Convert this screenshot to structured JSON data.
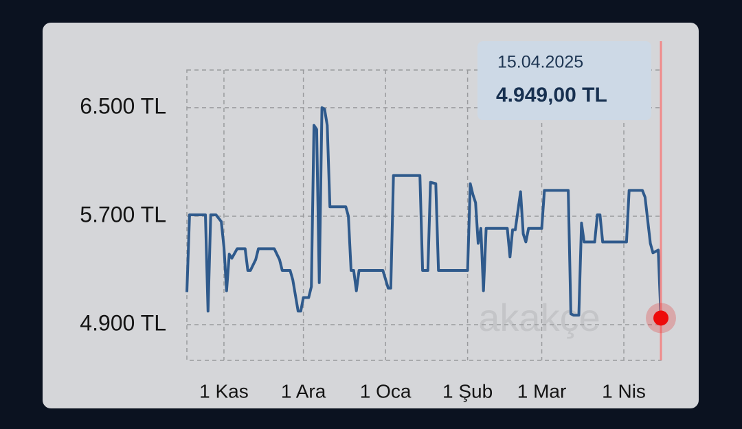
{
  "chart_data": {
    "type": "line",
    "x": [
      "2024-10-18",
      "2024-10-19",
      "2024-10-25",
      "2024-10-26",
      "2024-10-27",
      "2024-10-29",
      "2024-10-31",
      "2024-11-01",
      "2024-11-02",
      "2024-11-03",
      "2024-11-04",
      "2024-11-06",
      "2024-11-09",
      "2024-11-10",
      "2024-11-11",
      "2024-11-13",
      "2024-11-14",
      "2024-11-20",
      "2024-11-22",
      "2024-11-23",
      "2024-11-26",
      "2024-11-27",
      "2024-11-29",
      "2024-11-30",
      "2024-12-01",
      "2024-12-03",
      "2024-12-04",
      "2024-12-05",
      "2024-12-06",
      "2024-12-07",
      "2024-12-08",
      "2024-12-09",
      "2024-12-10",
      "2024-12-11",
      "2024-12-17",
      "2024-12-18",
      "2024-12-19",
      "2024-12-20",
      "2024-12-21",
      "2024-12-22",
      "2024-12-31",
      "2025-01-02",
      "2025-01-03",
      "2025-01-04",
      "2025-01-14",
      "2025-01-15",
      "2025-01-17",
      "2025-01-18",
      "2025-01-20",
      "2025-01-21",
      "2025-02-01",
      "2025-02-02",
      "2025-02-03",
      "2025-02-04",
      "2025-02-05",
      "2025-02-06",
      "2025-02-07",
      "2025-02-08",
      "2025-02-16",
      "2025-02-17",
      "2025-02-18",
      "2025-02-19",
      "2025-02-21",
      "2025-02-22",
      "2025-02-23",
      "2025-02-24",
      "2025-03-01",
      "2025-03-02",
      "2025-03-11",
      "2025-03-12",
      "2025-03-13",
      "2025-03-15",
      "2025-03-16",
      "2025-03-17",
      "2025-03-21",
      "2025-03-22",
      "2025-03-23",
      "2025-03-24",
      "2025-04-02",
      "2025-04-03",
      "2025-04-08",
      "2025-04-09",
      "2025-04-11",
      "2025-04-12",
      "2025-04-14",
      "2025-04-15"
    ],
    "values": [
      5140,
      5710,
      5710,
      5000,
      5710,
      5710,
      5660,
      5470,
      5150,
      5420,
      5390,
      5460,
      5460,
      5300,
      5300,
      5380,
      5460,
      5460,
      5380,
      5300,
      5300,
      5230,
      5000,
      5000,
      5100,
      5100,
      5180,
      6370,
      6340,
      5210,
      6500,
      6490,
      6370,
      5770,
      5770,
      5700,
      5300,
      5300,
      5150,
      5300,
      5300,
      5170,
      5170,
      6000,
      6000,
      5300,
      5300,
      5950,
      5940,
      5300,
      5300,
      5940,
      5860,
      5800,
      5500,
      5610,
      5150,
      5610,
      5610,
      5400,
      5600,
      5600,
      5880,
      5570,
      5510,
      5610,
      5610,
      5890,
      5890,
      4980,
      4970,
      4970,
      5650,
      5510,
      5510,
      5710,
      5710,
      5510,
      5510,
      5890,
      5890,
      5840,
      5500,
      5430,
      5450,
      4949
    ],
    "color": "#2f5a8c",
    "xlim": [
      "2024-10-18",
      "2025-04-15"
    ],
    "xticks": [
      {
        "value": "2024-11-01",
        "label": "1 Kas"
      },
      {
        "value": "2024-12-01",
        "label": "1 Ara"
      },
      {
        "value": "2025-01-01",
        "label": "1 Oca"
      },
      {
        "value": "2025-02-01",
        "label": "1 Şub"
      },
      {
        "value": "2025-03-01",
        "label": "1 Mar"
      },
      {
        "value": "2025-04-01",
        "label": "1 Nis"
      }
    ],
    "ylim": [
      4637,
      6778
    ],
    "yticks": [
      {
        "value": 4900,
        "label": "4.900 TL"
      },
      {
        "value": 5700,
        "label": "5.700 TL"
      },
      {
        "value": 6500,
        "label": "6.500 TL"
      }
    ],
    "grid": true,
    "tooltip": {
      "date": "15.04.2025",
      "value": "4.949,00 TL"
    },
    "watermark": "akakçe"
  }
}
